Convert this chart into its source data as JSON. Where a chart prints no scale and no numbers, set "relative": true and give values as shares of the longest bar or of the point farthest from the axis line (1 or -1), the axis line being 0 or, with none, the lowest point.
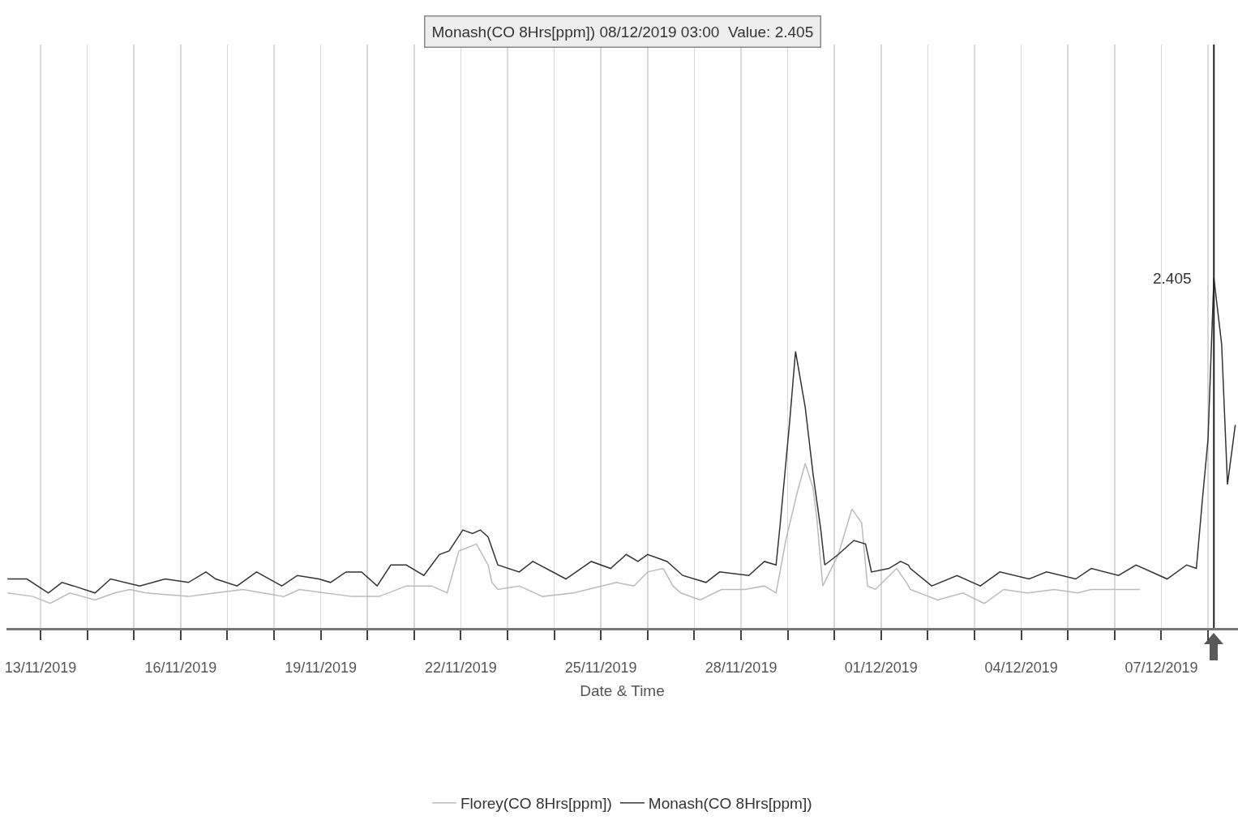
{
  "chart_data": {
    "type": "line",
    "xlabel": "Date & Time",
    "xlim": [
      "2019-11-12T06:30",
      "2019-12-08T15:24"
    ],
    "xticks": [
      {
        "value": "2019-11-13",
        "label": "13/11/2019"
      },
      {
        "value": "2019-11-14",
        "label": null
      },
      {
        "value": "2019-11-15",
        "label": null
      },
      {
        "value": "2019-11-16",
        "label": "16/11/2019"
      },
      {
        "value": "2019-11-17",
        "label": null
      },
      {
        "value": "2019-11-18",
        "label": null
      },
      {
        "value": "2019-11-19",
        "label": "19/11/2019"
      },
      {
        "value": "2019-11-20",
        "label": null
      },
      {
        "value": "2019-11-21",
        "label": null
      },
      {
        "value": "2019-11-22",
        "label": "22/11/2019"
      },
      {
        "value": "2019-11-23",
        "label": null
      },
      {
        "value": "2019-11-24",
        "label": null
      },
      {
        "value": "2019-11-25",
        "label": "25/11/2019"
      },
      {
        "value": "2019-11-26",
        "label": null
      },
      {
        "value": "2019-11-27",
        "label": null
      },
      {
        "value": "2019-11-28",
        "label": "28/11/2019"
      },
      {
        "value": "2019-11-29",
        "label": null
      },
      {
        "value": "2019-11-30",
        "label": null
      },
      {
        "value": "2019-12-01",
        "label": "01/12/2019"
      },
      {
        "value": "2019-12-02",
        "label": null
      },
      {
        "value": "2019-12-03",
        "label": null
      },
      {
        "value": "2019-12-04",
        "label": "04/12/2019"
      },
      {
        "value": "2019-12-05",
        "label": null
      },
      {
        "value": "2019-12-06",
        "label": null
      },
      {
        "value": "2019-12-07",
        "label": "07/12/2019"
      },
      {
        "value": "2019-12-08",
        "label": null
      }
    ],
    "relative": true,
    "grid": "x",
    "legend": "bottom",
    "series": [
      {
        "name": "Florey(CO 8Hrs[ppm])",
        "color": "#bbbbbb",
        "x": [
          "2019-11-12T07:00",
          "2019-11-12T20:00",
          "2019-11-13T05:00",
          "2019-11-13T15:00",
          "2019-11-14T04:00",
          "2019-11-14T14:00",
          "2019-11-14T22:00",
          "2019-11-15T06:00",
          "2019-11-16T04:00",
          "2019-11-17T08:00",
          "2019-11-18T05:00",
          "2019-11-18T13:00",
          "2019-11-19T02:00",
          "2019-11-19T16:00",
          "2019-11-20T06:00",
          "2019-11-20T20:00",
          "2019-11-21T09:00",
          "2019-11-21T17:00",
          "2019-11-21T23:00",
          "2019-11-22T08:00",
          "2019-11-22T14:00",
          "2019-11-22T16:00",
          "2019-11-22T19:00",
          "2019-11-23T06:00",
          "2019-11-23T18:00",
          "2019-11-24T10:00",
          "2019-11-25T08:00",
          "2019-11-25T17:00",
          "2019-11-26T00:00",
          "2019-11-26T08:00",
          "2019-11-26T13:00",
          "2019-11-26T17:00",
          "2019-11-27T03:00",
          "2019-11-27T14:00",
          "2019-11-28T02:00",
          "2019-11-28T12:00",
          "2019-11-28T18:00",
          "2019-11-28T23:00",
          "2019-11-29T05:00",
          "2019-11-29T09:00",
          "2019-11-29T13:00",
          "2019-11-29T15:00",
          "2019-11-29T18:00",
          "2019-11-30T02:00",
          "2019-11-30T09:00",
          "2019-11-30T14:00",
          "2019-11-30T17:00",
          "2019-11-30T21:00",
          "2019-12-01T08:00",
          "2019-12-01T13:00",
          "2019-12-01T15:00",
          "2019-12-02T05:00",
          "2019-12-02T18:00",
          "2019-12-03T05:00",
          "2019-12-03T15:00",
          "2019-12-04T03:00",
          "2019-12-04T17:00",
          "2019-12-05T05:00",
          "2019-12-05T12:00",
          "2019-12-06T13:00"
        ],
        "values": [
          0.1,
          0.09,
          0.07,
          0.1,
          0.08,
          0.1,
          0.11,
          0.1,
          0.09,
          0.11,
          0.09,
          0.11,
          0.1,
          0.09,
          0.09,
          0.12,
          0.12,
          0.1,
          0.22,
          0.24,
          0.18,
          0.13,
          0.11,
          0.12,
          0.09,
          0.1,
          0.13,
          0.12,
          0.16,
          0.17,
          0.12,
          0.1,
          0.08,
          0.11,
          0.11,
          0.12,
          0.1,
          0.25,
          0.39,
          0.47,
          0.4,
          0.31,
          0.12,
          0.21,
          0.34,
          0.3,
          0.12,
          0.11,
          0.17,
          0.13,
          0.11,
          0.08,
          0.1,
          0.07,
          0.11,
          0.1,
          0.11,
          0.1,
          0.11,
          0.11
        ]
      },
      {
        "name": "Monash(CO 8Hrs[ppm])",
        "color": "#333333",
        "x": [
          "2019-11-12T07:00",
          "2019-11-12T17:00",
          "2019-11-13T04:00",
          "2019-11-13T11:00",
          "2019-11-13T17:00",
          "2019-11-14T04:00",
          "2019-11-14T12:00",
          "2019-11-15T03:00",
          "2019-11-15T16:00",
          "2019-11-16T04:00",
          "2019-11-16T13:00",
          "2019-11-16T18:00",
          "2019-11-17T05:00",
          "2019-11-17T15:00",
          "2019-11-18T04:00",
          "2019-11-18T12:00",
          "2019-11-18T23:00",
          "2019-11-19T05:00",
          "2019-11-19T13:00",
          "2019-11-19T21:00",
          "2019-11-20T05:00",
          "2019-11-20T12:00",
          "2019-11-20T20:00",
          "2019-11-21T05:00",
          "2019-11-21T13:00",
          "2019-11-21T18:00",
          "2019-11-22T01:00",
          "2019-11-22T06:00",
          "2019-11-22T10:00",
          "2019-11-22T14:00",
          "2019-11-22T19:00",
          "2019-11-23T06:00",
          "2019-11-23T13:00",
          "2019-11-24T06:00",
          "2019-11-24T19:00",
          "2019-11-25T05:00",
          "2019-11-25T13:00",
          "2019-11-25T19:00",
          "2019-11-26T00:00",
          "2019-11-26T10:00",
          "2019-11-26T18:00",
          "2019-11-27T06:00",
          "2019-11-27T13:00",
          "2019-11-28T04:00",
          "2019-11-28T12:00",
          "2019-11-28T18:00",
          "2019-11-28T20:00",
          "2019-11-29T01:00",
          "2019-11-29T04:00",
          "2019-11-29T09:00",
          "2019-11-29T13:00",
          "2019-11-29T17:00",
          "2019-11-29T19:00",
          "2019-11-30T02:00",
          "2019-11-30T10:00",
          "2019-11-30T16:00",
          "2019-11-30T19:00",
          "2019-12-01T04:00",
          "2019-12-01T10:00",
          "2019-12-01T14:00",
          "2019-12-01T15:00",
          "2019-12-02T02:00",
          "2019-12-02T15:00",
          "2019-12-03T03:00",
          "2019-12-03T13:00",
          "2019-12-04T04:00",
          "2019-12-04T13:00",
          "2019-12-05T04:00",
          "2019-12-05T12:00",
          "2019-12-06T02:00",
          "2019-12-06T11:00",
          "2019-12-07T03:00",
          "2019-12-07T13:00",
          "2019-12-07T18:00",
          "2019-12-07T21:00",
          "2019-12-08T00:00",
          "2019-12-08T03:00",
          "2019-12-08T07:00",
          "2019-12-08T10:00",
          "2019-12-08T14:00"
        ],
        "values": [
          0.14,
          0.14,
          0.1,
          0.13,
          0.12,
          0.1,
          0.14,
          0.12,
          0.14,
          0.13,
          0.16,
          0.14,
          0.12,
          0.16,
          0.12,
          0.15,
          0.14,
          0.13,
          0.16,
          0.16,
          0.12,
          0.18,
          0.18,
          0.15,
          0.21,
          0.22,
          0.28,
          0.27,
          0.28,
          0.26,
          0.18,
          0.16,
          0.19,
          0.14,
          0.19,
          0.17,
          0.21,
          0.19,
          0.21,
          0.19,
          0.15,
          0.13,
          0.16,
          0.15,
          0.19,
          0.18,
          0.29,
          0.59,
          0.79,
          0.63,
          0.44,
          0.28,
          0.18,
          0.21,
          0.25,
          0.24,
          0.16,
          0.17,
          0.19,
          0.18,
          0.17,
          0.12,
          0.15,
          0.12,
          0.16,
          0.14,
          0.16,
          0.14,
          0.17,
          0.15,
          0.18,
          0.14,
          0.18,
          0.17,
          0.36,
          0.54,
          1,
          0.81,
          0.41,
          0.58
        ]
      }
    ],
    "ref_lines": [
      {
        "axis": "x",
        "value": "2019-12-08T03:00",
        "color": "#222222"
      }
    ],
    "annotations": [
      "Monash(CO 8Hrs[ppm]) 08/12/2019 03:00  Value: 2.405",
      {
        "text": "2.405",
        "x": "2019-12-08T03:00",
        "y": 1
      }
    ]
  }
}
